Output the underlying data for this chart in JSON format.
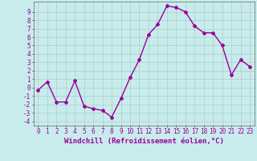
{
  "x": [
    0,
    1,
    2,
    3,
    4,
    5,
    6,
    7,
    8,
    9,
    10,
    11,
    12,
    13,
    14,
    15,
    16,
    17,
    18,
    19,
    20,
    21,
    22,
    23
  ],
  "y": [
    -0.3,
    0.7,
    -1.7,
    -1.7,
    0.8,
    -2.2,
    -2.5,
    -2.7,
    -3.5,
    -1.3,
    1.2,
    3.3,
    6.3,
    7.5,
    9.7,
    9.5,
    9.0,
    7.3,
    6.5,
    6.5,
    5.0,
    1.5,
    3.3,
    2.5
  ],
  "line_color": "#990099",
  "marker": "D",
  "markersize": 2.0,
  "linewidth": 1.0,
  "bg_color": "#c8ecec",
  "grid_color": "#aacccc",
  "xlabel": "Windchill (Refroidissement éolien,°C)",
  "xlabel_color": "#990099",
  "tick_color": "#990099",
  "yticks": [
    -4,
    -3,
    -2,
    -1,
    0,
    1,
    2,
    3,
    4,
    5,
    6,
    7,
    8,
    9
  ],
  "xticks": [
    0,
    1,
    2,
    3,
    4,
    5,
    6,
    7,
    8,
    9,
    10,
    11,
    12,
    13,
    14,
    15,
    16,
    17,
    18,
    19,
    20,
    21,
    22,
    23
  ],
  "xlim": [
    -0.5,
    23.5
  ],
  "ylim": [
    -4.5,
    10.2
  ],
  "figsize": [
    3.2,
    2.0
  ],
  "dpi": 100,
  "spine_color": "#666666",
  "label_fontsize": 6.5,
  "tick_fontsize": 5.5
}
